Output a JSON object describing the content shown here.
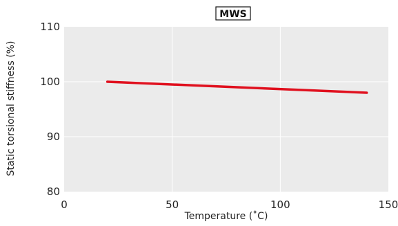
{
  "chart_data": {
    "type": "line",
    "title": "MWS",
    "xlabel": "Temperature (˚C)",
    "ylabel": "Static torsional stiffness (%)",
    "xlim": [
      0,
      150
    ],
    "ylim": [
      80,
      110
    ],
    "xticks": [
      0,
      50,
      100,
      150
    ],
    "yticks": [
      80,
      90,
      100,
      110
    ],
    "grid": true,
    "series": [
      {
        "x": [
          20,
          140
        ],
        "y": [
          100,
          98
        ],
        "color": "#e0101e"
      }
    ]
  },
  "colors": {
    "plot_background": "#ebebeb",
    "grid": "#ffffff",
    "line": "#e0101e"
  }
}
